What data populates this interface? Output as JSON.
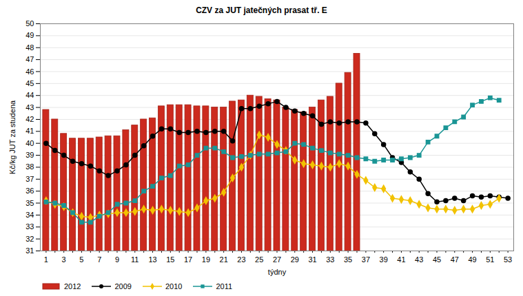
{
  "chart_data": {
    "type": "bar",
    "title": "CZV za JUT jatečných prasat tř. E",
    "x_label": "týdny",
    "y_label": "Kč/kg JUT za studena",
    "categories": [
      1,
      null,
      3,
      null,
      5,
      null,
      7,
      null,
      9,
      null,
      11,
      null,
      13,
      null,
      15,
      null,
      17,
      null,
      19,
      null,
      21,
      null,
      23,
      null,
      25,
      null,
      27,
      null,
      29,
      null,
      31,
      null,
      33,
      null,
      35,
      null,
      37,
      null,
      39,
      null,
      41,
      null,
      43,
      null,
      45,
      null,
      47,
      null,
      49,
      null,
      51,
      null,
      53
    ],
    "ylim": [
      31,
      50
    ],
    "yticks": [
      31,
      32,
      33,
      34,
      35,
      36,
      37,
      38,
      39,
      40,
      41,
      42,
      43,
      44,
      45,
      46,
      47,
      48,
      49,
      50
    ],
    "grid": true,
    "legend": "bottom",
    "series": [
      {
        "name": "2012",
        "type": "bar",
        "color": "#cc2a1e",
        "values": [
          42.8,
          42.0,
          40.8,
          40.4,
          40.4,
          40.4,
          40.5,
          40.6,
          40.6,
          41.1,
          41.5,
          42.0,
          42.1,
          43.1,
          43.2,
          43.2,
          43.2,
          43.1,
          43.1,
          43.0,
          43.0,
          43.5,
          43.6,
          44.0,
          43.9,
          43.7,
          43.6,
          43.0,
          42.8,
          42.6,
          43.0,
          43.6,
          43.9,
          45.0,
          45.9,
          47.5,
          null,
          null,
          null,
          null,
          null,
          null,
          null,
          null,
          null,
          null,
          null,
          null,
          null,
          null,
          null,
          null,
          null
        ]
      },
      {
        "name": "2009",
        "type": "line",
        "color": "#000000",
        "marker": "circle",
        "values": [
          40.0,
          39.4,
          39.0,
          38.5,
          38.3,
          38.1,
          37.7,
          37.3,
          37.7,
          38.2,
          39.0,
          39.8,
          40.6,
          41.2,
          41.2,
          40.9,
          40.9,
          41.0,
          40.9,
          41.0,
          41.0,
          40.2,
          42.9,
          42.9,
          43.1,
          43.3,
          43.5,
          43.0,
          42.7,
          42.5,
          42.3,
          41.6,
          41.8,
          41.7,
          41.8,
          41.8,
          41.7,
          40.8,
          39.9,
          38.8,
          38.4,
          37.6,
          37.0,
          35.8,
          35.1,
          35.2,
          35.4,
          35.2,
          35.6,
          35.5,
          35.6,
          35.5,
          35.4
        ]
      },
      {
        "name": "2010",
        "type": "line",
        "color": "#f2c200",
        "marker": "diamond",
        "values": [
          35.2,
          34.9,
          34.7,
          34.2,
          33.9,
          33.8,
          34.0,
          34.1,
          34.2,
          34.2,
          34.3,
          34.5,
          34.4,
          34.5,
          34.4,
          34.3,
          34.2,
          34.6,
          35.2,
          35.4,
          35.9,
          37.1,
          38.0,
          39.0,
          40.7,
          40.5,
          39.9,
          39.4,
          38.6,
          38.3,
          38.2,
          38.1,
          38.0,
          38.3,
          38.1,
          37.4,
          36.9,
          36.3,
          36.2,
          35.4,
          35.3,
          35.2,
          34.9,
          34.6,
          34.5,
          34.5,
          34.4,
          34.5,
          34.5,
          34.8,
          34.9,
          35.4,
          null
        ]
      },
      {
        "name": "2011",
        "type": "line",
        "color": "#1a9595",
        "marker": "square",
        "values": [
          35.1,
          35.0,
          34.8,
          34.2,
          33.4,
          33.4,
          33.9,
          34.2,
          34.9,
          35.0,
          35.2,
          36.0,
          36.4,
          37.1,
          37.3,
          38.1,
          38.2,
          39.0,
          39.6,
          39.6,
          39.3,
          38.8,
          38.9,
          39.0,
          39.1,
          39.1,
          39.2,
          39.3,
          40.0,
          39.9,
          39.6,
          39.4,
          39.2,
          39.1,
          39.0,
          38.8,
          38.7,
          38.5,
          38.6,
          38.6,
          38.7,
          38.8,
          39.0,
          40.1,
          40.6,
          41.3,
          41.8,
          42.2,
          43.2,
          43.5,
          43.8,
          43.6,
          null
        ]
      }
    ]
  }
}
